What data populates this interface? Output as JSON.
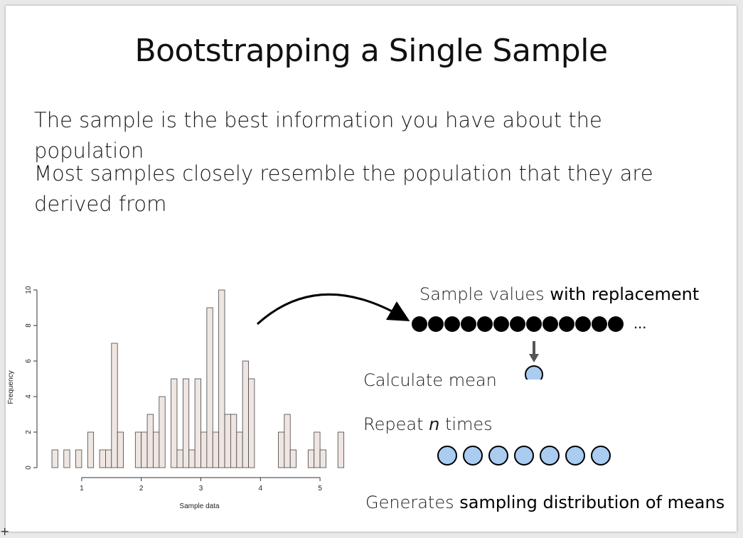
{
  "slide": {
    "title": "Bootstrapping a Single Sample",
    "bullets": [
      "The sample is the best information you have about the population",
      "Most samples closely resemble the population that they are derived from"
    ]
  },
  "diagram": {
    "sample_label_prefix": "Sample values ",
    "sample_label_emph": "with replacement",
    "ellipsis": "...",
    "calc_label": "Calculate mean",
    "repeat_prefix": "Repeat ",
    "repeat_var": "n",
    "repeat_suffix": " times",
    "generates_prefix": "Generates ",
    "generates_emph": "sampling distribution of means",
    "sample_dot_count": 13,
    "mean_dot_count": 7,
    "colors": {
      "dot_dark": "#000000",
      "mean_fill": "#a9ccf0",
      "arrow": "#555555"
    }
  },
  "chart_data": {
    "type": "bar",
    "xlabel": "Sample data",
    "ylabel": "Frequency",
    "xticks": [
      1,
      2,
      3,
      4,
      5
    ],
    "yticks": [
      0,
      2,
      4,
      6,
      8,
      10
    ],
    "xlim": [
      0.5,
      5.5
    ],
    "ylim": [
      0,
      10
    ],
    "bin_width": 0.1,
    "bins": [
      {
        "x": 0.5,
        "count": 1
      },
      {
        "x": 0.6,
        "count": 0
      },
      {
        "x": 0.7,
        "count": 1
      },
      {
        "x": 0.8,
        "count": 0
      },
      {
        "x": 0.9,
        "count": 1
      },
      {
        "x": 1.0,
        "count": 0
      },
      {
        "x": 1.1,
        "count": 2
      },
      {
        "x": 1.2,
        "count": 0
      },
      {
        "x": 1.3,
        "count": 1
      },
      {
        "x": 1.4,
        "count": 1
      },
      {
        "x": 1.5,
        "count": 7
      },
      {
        "x": 1.6,
        "count": 2
      },
      {
        "x": 1.7,
        "count": 0
      },
      {
        "x": 1.8,
        "count": 0
      },
      {
        "x": 1.9,
        "count": 2
      },
      {
        "x": 2.0,
        "count": 2
      },
      {
        "x": 2.1,
        "count": 3
      },
      {
        "x": 2.2,
        "count": 2
      },
      {
        "x": 2.3,
        "count": 4
      },
      {
        "x": 2.4,
        "count": 0
      },
      {
        "x": 2.5,
        "count": 5
      },
      {
        "x": 2.6,
        "count": 1
      },
      {
        "x": 2.7,
        "count": 5
      },
      {
        "x": 2.8,
        "count": 1
      },
      {
        "x": 2.9,
        "count": 5
      },
      {
        "x": 3.0,
        "count": 2
      },
      {
        "x": 3.1,
        "count": 9
      },
      {
        "x": 3.2,
        "count": 2
      },
      {
        "x": 3.3,
        "count": 10
      },
      {
        "x": 3.4,
        "count": 3
      },
      {
        "x": 3.5,
        "count": 3
      },
      {
        "x": 3.6,
        "count": 2
      },
      {
        "x": 3.7,
        "count": 6
      },
      {
        "x": 3.8,
        "count": 5
      },
      {
        "x": 3.9,
        "count": 0
      },
      {
        "x": 4.0,
        "count": 0
      },
      {
        "x": 4.1,
        "count": 0
      },
      {
        "x": 4.2,
        "count": 0
      },
      {
        "x": 4.3,
        "count": 2
      },
      {
        "x": 4.4,
        "count": 3
      },
      {
        "x": 4.5,
        "count": 1
      },
      {
        "x": 4.6,
        "count": 0
      },
      {
        "x": 4.7,
        "count": 0
      },
      {
        "x": 4.8,
        "count": 1
      },
      {
        "x": 4.9,
        "count": 2
      },
      {
        "x": 5.0,
        "count": 1
      },
      {
        "x": 5.1,
        "count": 0
      },
      {
        "x": 5.2,
        "count": 0
      },
      {
        "x": 5.3,
        "count": 2
      }
    ]
  }
}
